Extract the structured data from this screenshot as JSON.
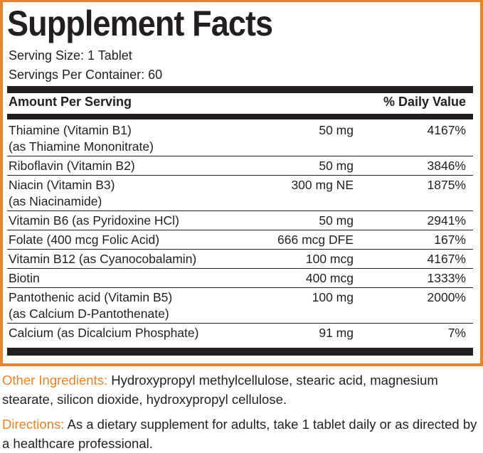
{
  "title": "Supplement Facts",
  "serving_size": "Serving Size: 1 Tablet",
  "servings_per_container": "Servings Per Container: 60",
  "header": {
    "amount": "Amount Per Serving",
    "dv": "% Daily Value"
  },
  "rows": [
    {
      "name": "Thiamine (Vitamin B1)",
      "sub": "(as Thiamine Mononitrate)",
      "amount": "50 mg",
      "dv": "4167%"
    },
    {
      "name": "Riboflavin (Vitamin B2)",
      "sub": "",
      "amount": "50 mg",
      "dv": "3846%"
    },
    {
      "name": "Niacin (Vitamin B3)",
      "sub": "(as Niacinamide)",
      "amount": "300 mg NE",
      "dv": "1875%"
    },
    {
      "name": "Vitamin B6 (as Pyridoxine HCl)",
      "sub": "",
      "amount": "50 mg",
      "dv": "2941%"
    },
    {
      "name": "Folate (400 mcg Folic Acid)",
      "sub": "",
      "amount": "666 mcg DFE",
      "dv": "167%"
    },
    {
      "name": "Vitamin B12 (as Cyanocobalamin)",
      "sub": "",
      "amount": "100 mcg",
      "dv": "4167%"
    },
    {
      "name": "Biotin",
      "sub": "",
      "amount": "400 mcg",
      "dv": "1333%"
    },
    {
      "name": "Pantothenic acid (Vitamin B5)",
      "sub": "(as Calcium D-Pantothenate)",
      "amount": "100 mg",
      "dv": "2000%"
    },
    {
      "name": "Calcium (as Dicalcium Phosphate)",
      "sub": "",
      "amount": "91 mg",
      "dv": "7%"
    }
  ],
  "other_ingredients": {
    "label": "Other Ingredients:",
    "text": " Hydroxypropyl methylcellulose, stearic acid, magnesium stearate, silicon dioxide, hydroxypropyl cellulose."
  },
  "directions": {
    "label": "Directions:",
    "text": " As a dietary supplement for adults, take 1 tablet daily or as directed by a healthcare professional."
  },
  "colors": {
    "accent": "#e8842a",
    "text": "#231f20"
  }
}
